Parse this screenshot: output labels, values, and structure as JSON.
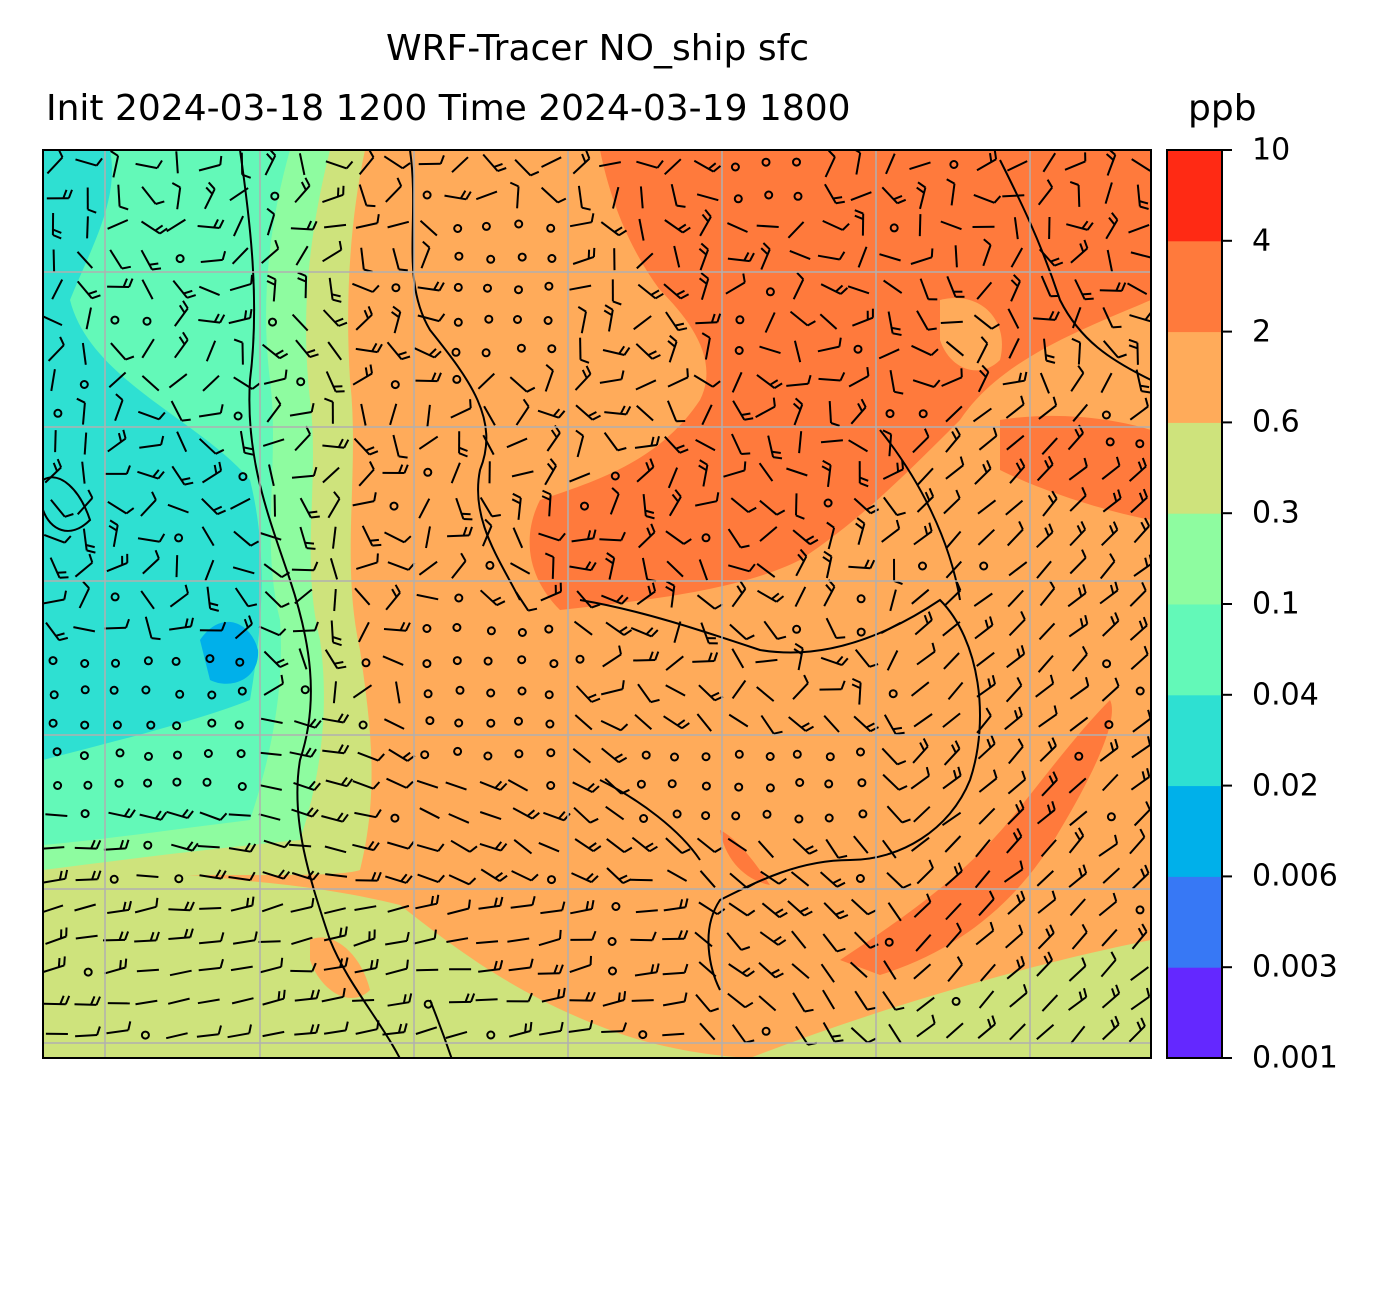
{
  "figure": {
    "title_line1": "WRF-Tracer NO_ship sfc",
    "title_line2": "Init 2024-03-18 1200 Time 2024-03-19 1800",
    "unit": "ppb"
  },
  "colorbar": {
    "tick_labels": [
      "0.001",
      "0.003",
      "0.006",
      "0.02",
      "0.04",
      "0.1",
      "0.3",
      "0.6",
      "2",
      "4",
      "10"
    ],
    "bin_colors": [
      "#6428ff",
      "#3778f5",
      "#00b0ea",
      "#2ee0d2",
      "#63f9b8",
      "#8efca0",
      "#cee37c",
      "#ffab5a",
      "#ff7a3c",
      "#ff2a14"
    ]
  },
  "map": {
    "colors": {
      "coast": "#000000",
      "grid": "#b0b0b0",
      "frame": "#000000"
    },
    "gridlines": true
  }
}
